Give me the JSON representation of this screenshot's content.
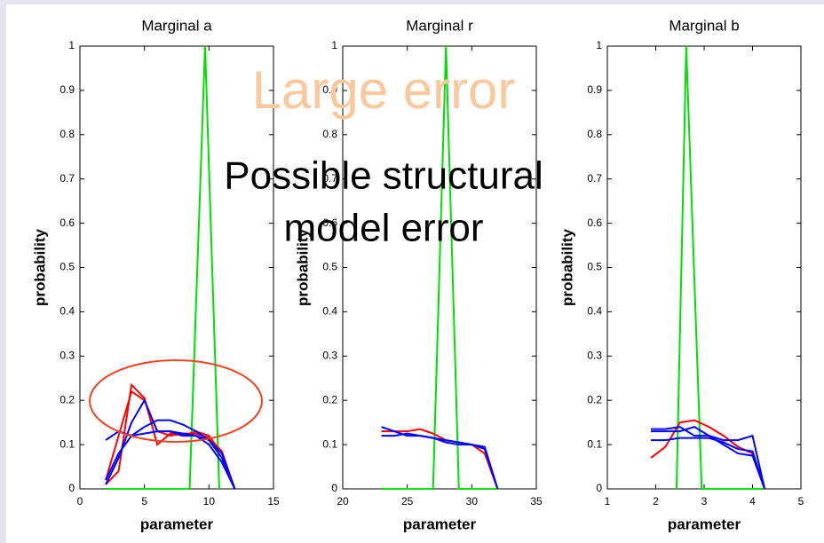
{
  "chart_data": [
    {
      "type": "line",
      "title": "Marginal a",
      "x_label": "parameter",
      "y_label": "probability",
      "xlim": [
        0,
        15
      ],
      "xticks": [
        0,
        5,
        10,
        15
      ],
      "ylim": [
        0,
        1
      ],
      "yticks": [
        0,
        0.1,
        0.2,
        0.3,
        0.4,
        0.5,
        0.6,
        0.7,
        0.8,
        0.9,
        1
      ],
      "series": [
        {
          "color": "#00e000",
          "x": [
            2,
            8.5,
            9.7,
            10.8
          ],
          "values": [
            0,
            0,
            1,
            0
          ]
        },
        {
          "color": "#ff0000",
          "x": [
            2,
            3,
            4,
            5,
            6,
            7,
            8,
            9,
            10,
            11,
            12
          ],
          "values": [
            0.01,
            0.04,
            0.235,
            0.205,
            0.1,
            0.125,
            0.12,
            0.13,
            0.12,
            0.08,
            0
          ]
        },
        {
          "color": "#ff0000",
          "x": [
            2,
            3,
            4,
            5,
            6,
            7,
            8,
            9,
            10,
            11,
            12
          ],
          "values": [
            0.02,
            0.12,
            0.22,
            0.2,
            0.13,
            0.12,
            0.125,
            0.125,
            0.115,
            0.085,
            0
          ]
        },
        {
          "color": "#0000ff",
          "x": [
            2,
            3,
            4,
            5,
            6,
            7,
            8,
            9,
            10,
            11,
            12
          ],
          "values": [
            0.01,
            0.07,
            0.15,
            0.2,
            0.13,
            0.13,
            0.12,
            0.12,
            0.11,
            0.07,
            0
          ]
        },
        {
          "color": "#0000ff",
          "x": [
            2,
            3,
            4,
            5,
            6,
            7,
            8,
            9,
            10,
            11,
            12
          ],
          "values": [
            0.11,
            0.13,
            0.12,
            0.125,
            0.13,
            0.13,
            0.125,
            0.12,
            0.1,
            0.06,
            0
          ]
        },
        {
          "color": "#0000ff",
          "x": [
            2,
            3,
            4,
            5,
            6,
            7,
            8,
            9,
            10,
            11,
            12
          ],
          "values": [
            0.02,
            0.08,
            0.12,
            0.14,
            0.155,
            0.155,
            0.145,
            0.13,
            0.11,
            0.08,
            0
          ]
        }
      ]
    },
    {
      "type": "line",
      "title": "Marginal r",
      "x_label": "parameter",
      "y_label": "probability",
      "xlim": [
        20,
        35
      ],
      "xticks": [
        20,
        25,
        30,
        35
      ],
      "ylim": [
        0,
        1
      ],
      "yticks": [
        0,
        0.1,
        0.2,
        0.3,
        0.4,
        0.5,
        0.6,
        0.7,
        0.8,
        0.9,
        1
      ],
      "series": [
        {
          "color": "#00e000",
          "x": [
            23,
            27,
            28,
            29,
            32
          ],
          "values": [
            0,
            0,
            1,
            0,
            0
          ]
        },
        {
          "color": "#ff0000",
          "x": [
            23,
            24,
            25,
            26,
            27,
            28,
            29,
            30,
            31,
            32
          ],
          "values": [
            0.13,
            0.13,
            0.13,
            0.135,
            0.125,
            0.11,
            0.105,
            0.1,
            0.08,
            0
          ]
        },
        {
          "color": "#0000ff",
          "x": [
            23,
            24,
            25,
            26,
            27,
            28,
            29,
            30,
            31,
            32
          ],
          "values": [
            0.14,
            0.13,
            0.12,
            0.12,
            0.115,
            0.11,
            0.105,
            0.1,
            0.095,
            0
          ]
        },
        {
          "color": "#0000ff",
          "x": [
            23,
            24,
            25,
            26,
            27,
            28,
            29,
            30,
            31,
            32
          ],
          "values": [
            0.12,
            0.12,
            0.125,
            0.12,
            0.115,
            0.105,
            0.1,
            0.1,
            0.09,
            0
          ]
        }
      ]
    },
    {
      "type": "line",
      "title": "Marginal b",
      "x_label": "parameter",
      "y_label": "probability",
      "xlim": [
        1,
        5
      ],
      "xticks": [
        1,
        2,
        3,
        4,
        5
      ],
      "ylim": [
        0,
        1
      ],
      "yticks": [
        0,
        0.1,
        0.2,
        0.3,
        0.4,
        0.5,
        0.6,
        0.7,
        0.8,
        0.9,
        1
      ],
      "series": [
        {
          "color": "#00e000",
          "x": [
            2.43,
            2.63,
            2.95,
            4.25
          ],
          "values": [
            0,
            1,
            0,
            0
          ]
        },
        {
          "color": "#ff0000",
          "x": [
            1.9,
            2.2,
            2.5,
            2.8,
            3.1,
            3.4,
            3.7,
            4.0,
            4.25
          ],
          "values": [
            0.07,
            0.095,
            0.15,
            0.155,
            0.14,
            0.12,
            0.095,
            0.08,
            0
          ]
        },
        {
          "color": "#0000ff",
          "x": [
            1.9,
            2.2,
            2.5,
            2.8,
            3.1,
            3.4,
            3.7,
            4.0,
            4.25
          ],
          "values": [
            0.135,
            0.135,
            0.14,
            0.12,
            0.12,
            0.11,
            0.11,
            0.12,
            0
          ]
        },
        {
          "color": "#0000ff",
          "x": [
            1.9,
            2.2,
            2.5,
            2.8,
            3.1,
            3.4,
            3.7,
            4.0,
            4.25
          ],
          "values": [
            0.11,
            0.11,
            0.115,
            0.115,
            0.115,
            0.105,
            0.09,
            0.085,
            0
          ]
        },
        {
          "color": "#0000ff",
          "x": [
            1.9,
            2.2,
            2.5,
            2.8,
            3.1,
            3.4,
            3.7,
            4.0,
            4.25
          ],
          "values": [
            0.13,
            0.13,
            0.13,
            0.14,
            0.12,
            0.1,
            0.08,
            0.075,
            0
          ]
        }
      ]
    }
  ],
  "annotations": {
    "large_error": "Large error",
    "structural": [
      "Possible structural",
      "model error"
    ]
  }
}
